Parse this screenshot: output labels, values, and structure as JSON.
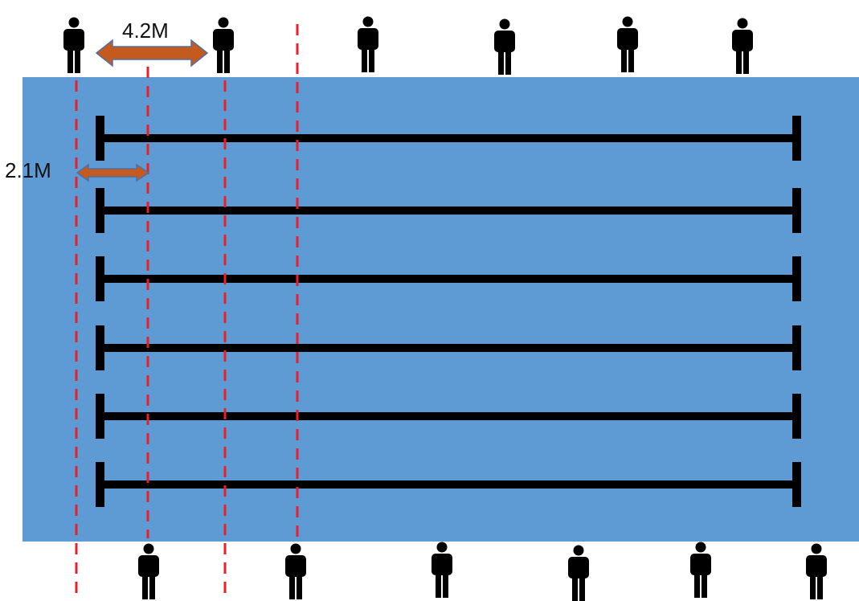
{
  "labels": {
    "spacing_between_swimmers": "4.2M",
    "distance_from_wall": "2.1M"
  },
  "pool": {
    "lane_ropes": 6,
    "swimmers_top": 6,
    "swimmers_bottom": 6
  },
  "colors": {
    "water": "#5e9ad3",
    "rope": "#000000",
    "guide_line": "#e8202a",
    "arrow_fill": "#c55a1f",
    "arrow_stroke": "#4f6fa6",
    "person": "#000000"
  },
  "icons": {
    "person": "person-icon",
    "arrow": "double-headed-arrow"
  }
}
